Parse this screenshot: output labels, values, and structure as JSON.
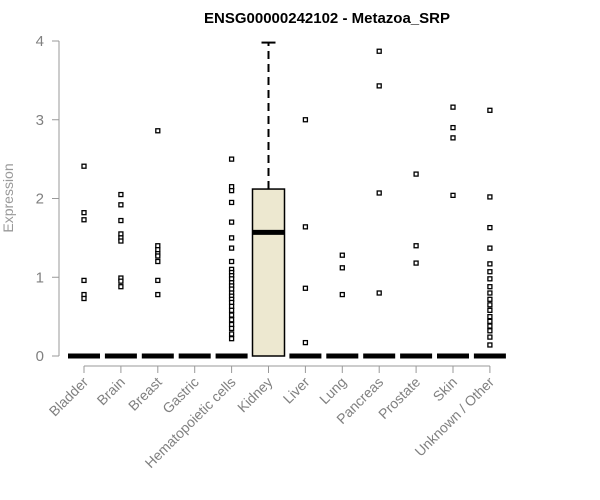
{
  "chart_data": {
    "type": "boxplot",
    "title": "ENSG00000242102 - Metazoa_SRP",
    "xlabel": "",
    "ylabel": "Expression",
    "ylim": [
      0,
      4
    ],
    "yticks": [
      0,
      1,
      2,
      3,
      4
    ],
    "box_fill": "#ede8d0",
    "categories": [
      "Bladder",
      "Brain",
      "Breast",
      "Gastric",
      "Hematopoietic cells",
      "Kidney",
      "Liver",
      "Lung",
      "Pancreas",
      "Prostate",
      "Skin",
      "Unknown / Other"
    ],
    "median": [
      0,
      0,
      0,
      0,
      0,
      1.57,
      0,
      0,
      0,
      0,
      0,
      0
    ],
    "q1": [
      0,
      0,
      0,
      0,
      0,
      0,
      0,
      0,
      0,
      0,
      0,
      0
    ],
    "q3": [
      0,
      0,
      0,
      0,
      0,
      2.12,
      0,
      0,
      0,
      0,
      0,
      0
    ],
    "whisker_low": [
      0,
      0,
      0,
      0,
      0,
      0,
      0,
      0,
      0,
      0,
      0,
      0
    ],
    "whisker_high": [
      0,
      0,
      0,
      0,
      0,
      3.98,
      0,
      0,
      0,
      0,
      0,
      0
    ],
    "outliers": [
      [
        2.41,
        1.82,
        1.73,
        0.96,
        0.78,
        0.73
      ],
      [
        2.05,
        1.92,
        1.72,
        1.55,
        1.5,
        1.46,
        0.99,
        0.95,
        0.88
      ],
      [
        2.86,
        1.4,
        1.35,
        1.3,
        1.27,
        1.2,
        0.96,
        0.78
      ],
      [],
      [
        2.5,
        2.15,
        2.1,
        1.95,
        1.7,
        1.5,
        1.37,
        1.2,
        1.1,
        1.06,
        1.02,
        0.98,
        0.93,
        0.89,
        0.85,
        0.8,
        0.76,
        0.72,
        0.68,
        0.63,
        0.58,
        0.52,
        0.46,
        0.4,
        0.35,
        0.28,
        0.22
      ],
      [],
      [
        3.0,
        1.64,
        0.86,
        0.17
      ],
      [
        1.28,
        1.12,
        0.78
      ],
      [
        3.87,
        3.43,
        2.07,
        0.8
      ],
      [
        2.31,
        1.4,
        1.18
      ],
      [
        3.16,
        2.9,
        2.77,
        2.04
      ],
      [
        3.12,
        2.02,
        1.63,
        1.37,
        1.17,
        1.07,
        0.98,
        0.88,
        0.8,
        0.72,
        0.65,
        0.58,
        0.5,
        0.44,
        0.38,
        0.32,
        0.24,
        0.14
      ]
    ]
  }
}
